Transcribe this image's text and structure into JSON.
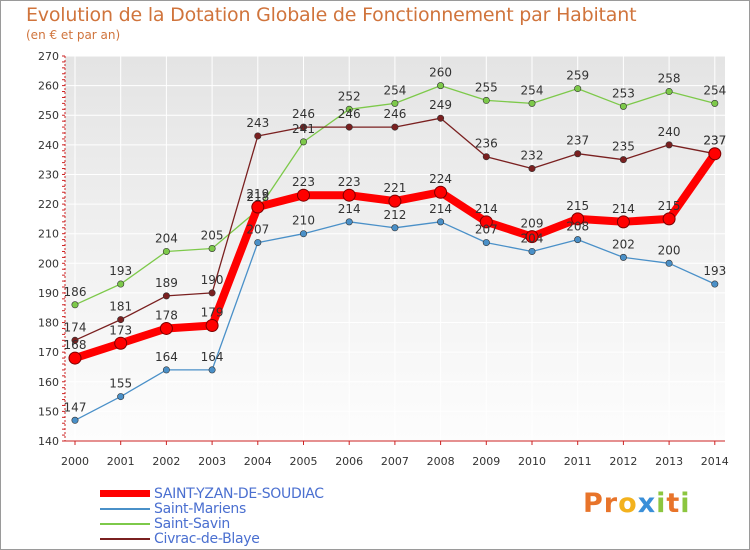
{
  "title": "Evolution de la Dotation Globale de Fonctionnement par Habitant",
  "subtitle": "(en € et par an)",
  "logo": {
    "letters": [
      "P",
      "r",
      "o",
      "x",
      "i",
      "t",
      "i"
    ],
    "colors": [
      "#e8742a",
      "#e8742a",
      "#f3b21e",
      "#3a8fd8",
      "#8cc63f",
      "#e8742a",
      "#8cc63f"
    ]
  },
  "chart_data": {
    "type": "line",
    "title": "Evolution de la Dotation Globale de Fonctionnement par Habitant",
    "subtitle": "(en € et par an)",
    "xlabel": "",
    "ylabel": "",
    "ylim": [
      140,
      270
    ],
    "yticks": [
      140,
      150,
      160,
      170,
      180,
      190,
      200,
      210,
      220,
      230,
      240,
      250,
      260,
      270
    ],
    "x": [
      "2000",
      "2001",
      "2002",
      "2003",
      "2004",
      "2005",
      "2006",
      "2007",
      "2008",
      "2009",
      "2010",
      "2011",
      "2012",
      "2013",
      "2014"
    ],
    "grid": true,
    "legend_position": "bottom-left",
    "series": [
      {
        "name": "SAINT-YZAN-DE-SOUDIAC",
        "color": "#ff0000",
        "values": [
          168,
          173,
          178,
          179,
          219,
          223,
          223,
          221,
          224,
          214,
          209,
          215,
          214,
          215,
          237
        ]
      },
      {
        "name": "Saint-Mariens",
        "color": "#4a90c8",
        "values": [
          147,
          155,
          164,
          164,
          207,
          210,
          214,
          212,
          214,
          207,
          204,
          208,
          202,
          200,
          193
        ]
      },
      {
        "name": "Saint-Savin",
        "color": "#7dc94a",
        "values": [
          186,
          193,
          204,
          205,
          218,
          241,
          252,
          254,
          260,
          255,
          254,
          259,
          253,
          258,
          254
        ]
      },
      {
        "name": "Civrac-de-Blaye",
        "color": "#7a2020",
        "values": [
          174,
          181,
          189,
          190,
          243,
          246,
          246,
          246,
          249,
          236,
          232,
          237,
          235,
          240,
          237
        ]
      }
    ]
  }
}
